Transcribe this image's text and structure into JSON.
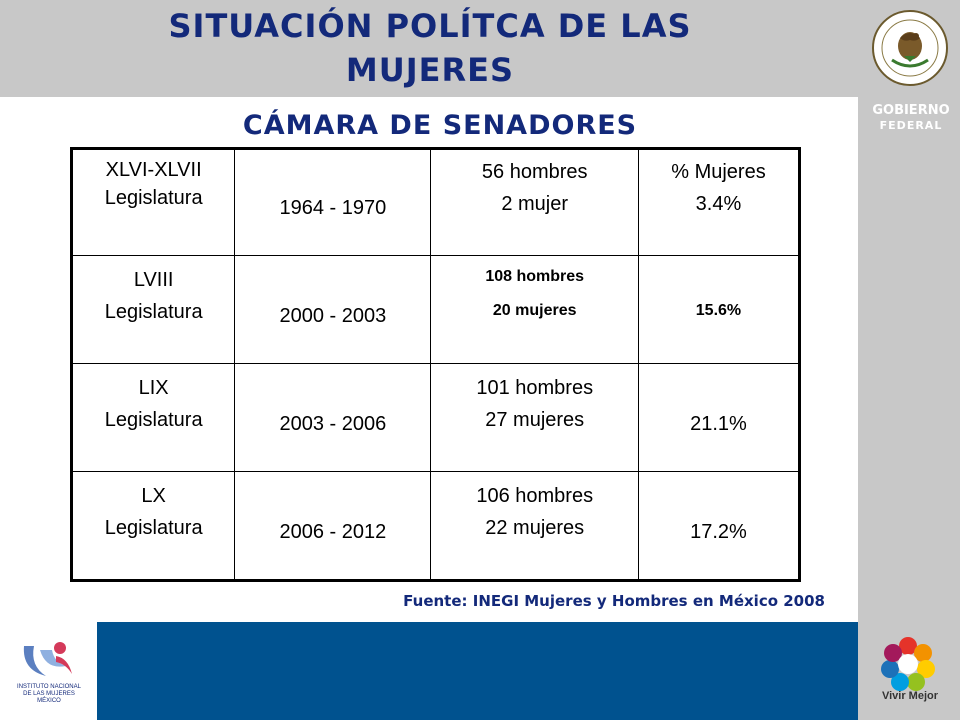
{
  "title": "SITUACIÓN POLÍTCA DE LAS MUJERES",
  "subtitle": "CÁMARA DE SENADORES",
  "table": {
    "rows": [
      {
        "leg": [
          "XLVI-XLVII",
          "Legislatura"
        ],
        "period": "1964 - 1970",
        "seats": [
          "56 hombres",
          "2 mujer"
        ],
        "pct": [
          "% Mujeres",
          "3.4%"
        ]
      },
      {
        "leg": [
          "LVIII",
          "Legislatura"
        ],
        "period": "2000 - 2003",
        "seats": [
          "108 hombres",
          "20 mujeres"
        ],
        "pct": [
          "15.6%"
        ]
      },
      {
        "leg": [
          "LIX",
          "Legislatura"
        ],
        "period": "2003 - 2006",
        "seats": [
          "101 hombres",
          "27 mujeres"
        ],
        "pct": [
          "21.1%"
        ]
      },
      {
        "leg": [
          "LX",
          "Legislatura"
        ],
        "period": "2006 - 2012",
        "seats": [
          "106 hombres",
          "22 mujeres"
        ],
        "pct": [
          "17.2%"
        ]
      }
    ]
  },
  "source": "Fuente: INEGI Mujeres y Hombres en México 2008",
  "logos": {
    "seal_icon": "estados-unidos-mexicanos-seal-icon",
    "gobierno_line1": "GOBIERNO",
    "gobierno_line2": "FEDERAL",
    "vivir_mejor": "Vivir Mejor",
    "inm_line1": "INSTITUTO NACIONAL",
    "inm_line2": "DE LAS MUJERES",
    "inm_line3": "MÉXICO"
  },
  "colors": {
    "title": "#13297a",
    "band_gray": "#c8c8c8",
    "band_blue": "#00528f"
  }
}
